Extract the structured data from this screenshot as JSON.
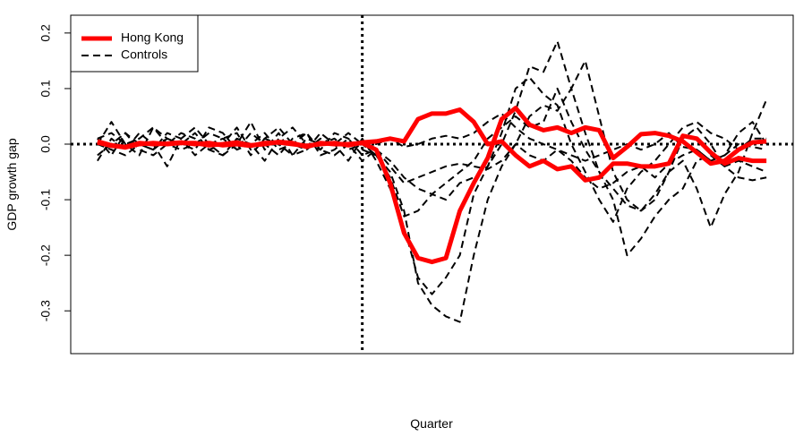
{
  "chart_data": {
    "type": "line",
    "x_label": "Quarter",
    "y_label": "GDP growth gap",
    "ylim": [
      -0.377,
      0.232
    ],
    "yticks": [
      -0.3,
      -0.2,
      -0.1,
      {
        "value": 0,
        "label": "0.0"
      },
      0.1,
      0.2
    ],
    "treatment_x": 19,
    "reference_y": 0,
    "legend": "topleft",
    "series": [
      {
        "name": "Controls",
        "color": "#000000",
        "dash": true,
        "width": 2,
        "values": [
          [
            0.01,
            -0.02,
            0.02,
            0.0,
            -0.01,
            0.01,
            0.0,
            0.02,
            -0.01,
            0.0,
            0.03,
            -0.01,
            0.01,
            0.0,
            -0.02,
            0.01,
            0.0,
            0.01,
            -0.01,
            0.0,
            -0.02,
            -0.05,
            -0.12,
            -0.25,
            -0.29,
            -0.31,
            -0.32,
            -0.2,
            -0.1,
            -0.04,
            0.0,
            0.05,
            0.07,
            0.06,
            0.1,
            0.02,
            -0.05,
            -0.1,
            -0.2,
            -0.17,
            -0.13,
            -0.1,
            -0.08,
            -0.03,
            -0.02,
            -0.04,
            -0.06,
            -0.065,
            -0.06
          ],
          [
            -0.03,
            0.01,
            -0.01,
            0.02,
            0.0,
            -0.04,
            0.01,
            0.03,
            0.0,
            -0.02,
            0.0,
            0.04,
            -0.01,
            0.02,
            -0.02,
            -0.01,
            0.02,
            0.0,
            -0.03,
            0.01,
            -0.03,
            -0.08,
            -0.15,
            -0.24,
            -0.27,
            -0.24,
            -0.2,
            -0.09,
            -0.04,
            0.0,
            0.06,
            0.14,
            0.13,
            0.185,
            0.1,
            0.15,
            0.05,
            -0.05,
            -0.1,
            -0.12,
            -0.09,
            -0.05,
            -0.03,
            -0.08,
            -0.15,
            -0.09,
            -0.05,
            0.02,
            0.08
          ],
          [
            0.0,
            0.04,
            0.0,
            -0.02,
            0.03,
            0.01,
            0.0,
            -0.01,
            0.03,
            0.02,
            -0.01,
            0.0,
            -0.03,
            0.01,
            0.03,
            0.0,
            -0.01,
            0.02,
            0.01,
            -0.01,
            -0.02,
            -0.06,
            -0.13,
            -0.12,
            -0.09,
            -0.1,
            -0.07,
            -0.06,
            -0.04,
            0.02,
            0.1,
            0.12,
            0.09,
            0.07,
            0.0,
            -0.05,
            -0.1,
            -0.14,
            -0.08,
            -0.05,
            -0.03,
            0.0,
            0.03,
            0.04,
            0.02,
            0.01,
            -0.01,
            0.01,
            0.01
          ],
          [
            -0.02,
            0.0,
            0.02,
            -0.01,
            -0.02,
            0.0,
            0.02,
            0.01,
            -0.01,
            -0.02,
            0.01,
            0.0,
            0.02,
            -0.01,
            0.0,
            0.02,
            -0.02,
            -0.01,
            0.01,
            -0.02,
            -0.01,
            -0.03,
            -0.06,
            -0.08,
            -0.09,
            -0.07,
            -0.05,
            -0.03,
            0.01,
            0.03,
            0.05,
            0.03,
            0.04,
            0.1,
            0.04,
            -0.01,
            -0.05,
            -0.08,
            -0.11,
            -0.12,
            -0.1,
            -0.05,
            0.01,
            0.03,
            0.0,
            -0.04,
            -0.03,
            -0.04,
            -0.05
          ],
          [
            0.01,
            0.02,
            0.0,
            0.01,
            0.03,
            0.0,
            -0.01,
            0.0,
            0.02,
            0.01,
            0.02,
            -0.02,
            0.01,
            0.03,
            0.0,
            -0.01,
            0.01,
            0.0,
            0.02,
            0.0,
            0.0,
            0.01,
            -0.005,
            0.0,
            0.01,
            0.015,
            0.01,
            0.02,
            0.04,
            0.055,
            0.03,
            0.01,
            0.0,
            -0.01,
            -0.02,
            -0.03,
            -0.02,
            -0.01,
            0.0,
            -0.01,
            0.0,
            0.02,
            -0.005,
            -0.01,
            -0.03,
            -0.02,
            0.0,
            -0.005,
            -0.01
          ],
          [
            0.0,
            -0.01,
            -0.02,
            0.0,
            -0.01,
            0.02,
            0.01,
            -0.02,
            0.0,
            0.01,
            -0.01,
            0.02,
            0.0,
            -0.02,
            0.01,
            0.02,
            -0.01,
            -0.02,
            0.0,
            -0.03,
            -0.01,
            -0.04,
            -0.07,
            -0.06,
            -0.05,
            -0.04,
            -0.035,
            -0.04,
            -0.045,
            -0.03,
            0.0,
            -0.02,
            -0.03,
            -0.01,
            -0.03,
            -0.06,
            -0.08,
            -0.07,
            -0.05,
            -0.04,
            -0.06,
            -0.035,
            -0.02,
            -0.01,
            -0.03,
            -0.02,
            0.02,
            0.04,
            0.0
          ]
        ]
      },
      {
        "name": "Hong Kong",
        "color": "#ff0000",
        "dash": false,
        "width": 5,
        "values": [
          [
            0.003,
            -0.003,
            -0.005,
            0.002,
            0.0,
            0.001,
            0.003,
            0.0,
            0.002,
            -0.002,
            0.0,
            -0.003,
            0.002,
            0.003,
            0.0,
            -0.003,
            0.0,
            0.002,
            -0.002,
            0.003,
            0.005,
            0.01,
            0.005,
            0.045,
            0.055,
            0.055,
            0.062,
            0.04,
            0.0,
            0.005,
            -0.02,
            -0.04,
            -0.03,
            -0.045,
            -0.04,
            -0.065,
            -0.06,
            -0.035,
            -0.035,
            -0.04,
            -0.04,
            -0.035,
            0.015,
            0.01,
            -0.015,
            -0.035,
            -0.025,
            -0.03,
            -0.03
          ],
          [
            0.005,
            -0.002,
            -0.006,
            0.0,
            0.002,
            0.0,
            0.002,
            0.002,
            -0.002,
            0.0,
            0.003,
            -0.002,
            0.0,
            0.004,
            0.002,
            -0.005,
            0.002,
            0.0,
            0.0,
            0.002,
            -0.01,
            -0.07,
            -0.16,
            -0.205,
            -0.212,
            -0.205,
            -0.12,
            -0.07,
            -0.025,
            0.045,
            0.065,
            0.035,
            0.025,
            0.03,
            0.02,
            0.03,
            0.025,
            -0.025,
            -0.005,
            0.018,
            0.02,
            0.015,
            0.005,
            -0.015,
            -0.035,
            -0.03,
            -0.01,
            0.003,
            0.005
          ]
        ]
      }
    ]
  }
}
